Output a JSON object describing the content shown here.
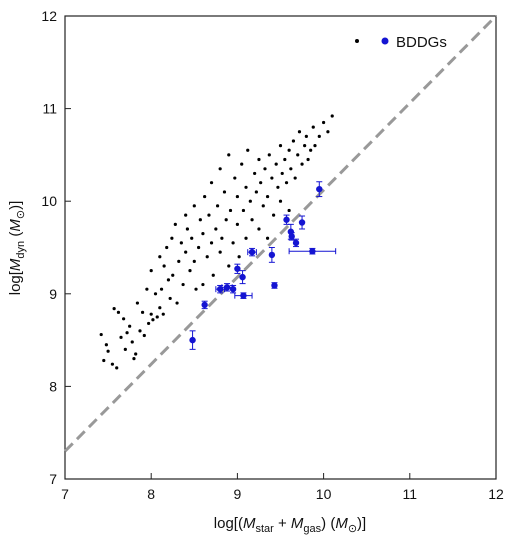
{
  "chart_data": {
    "type": "scatter",
    "title": "",
    "xlabel_parts": [
      "log[(",
      "M",
      "star",
      " + ",
      "M",
      "gas",
      ") (",
      "M",
      "⊙",
      ")]"
    ],
    "ylabel_parts": [
      "log[",
      "M",
      "dyn",
      " (",
      "M",
      "⊙",
      ")]"
    ],
    "xlim": [
      7,
      12
    ],
    "ylim": [
      7,
      12
    ],
    "xticks": [
      7,
      8,
      9,
      10,
      11,
      12
    ],
    "yticks": [
      7,
      8,
      9,
      10,
      11,
      12
    ],
    "xtick_labels": [
      "7",
      "8",
      "9",
      "10",
      "11",
      "12"
    ],
    "ytick_labels": [
      "7",
      "8",
      "9",
      "10",
      "11",
      "12"
    ],
    "grid": false,
    "legend_position": "top-right",
    "legend_label": "BDDGs",
    "reference_line": {
      "style": "dashed",
      "color": "#999999",
      "x": [
        7,
        12
      ],
      "y": [
        7.3,
        12.05
      ]
    },
    "colors": {
      "comparison": "#000000",
      "bddg": "#1414d2",
      "reference": "#999999"
    },
    "series": [
      {
        "marker": "small-dot",
        "points": [
          [
            7.42,
            8.56
          ],
          [
            7.45,
            8.28
          ],
          [
            7.48,
            8.45
          ],
          [
            7.5,
            8.38
          ],
          [
            7.55,
            8.24
          ],
          [
            7.57,
            8.84
          ],
          [
            7.6,
            8.2
          ],
          [
            7.62,
            8.8
          ],
          [
            7.65,
            8.53
          ],
          [
            7.68,
            8.73
          ],
          [
            7.7,
            8.4
          ],
          [
            7.72,
            8.58
          ],
          [
            7.75,
            8.65
          ],
          [
            7.78,
            8.48
          ],
          [
            7.8,
            8.3
          ],
          [
            7.82,
            8.35
          ],
          [
            7.84,
            8.9
          ],
          [
            7.87,
            8.6
          ],
          [
            7.9,
            8.8
          ],
          [
            7.92,
            8.55
          ],
          [
            7.95,
            9.05
          ],
          [
            7.97,
            8.68
          ],
          [
            8.0,
            9.25
          ],
          [
            8.0,
            8.78
          ],
          [
            8.02,
            8.72
          ],
          [
            8.05,
            9.0
          ],
          [
            8.07,
            8.75
          ],
          [
            8.1,
            8.85
          ],
          [
            8.1,
            9.4
          ],
          [
            8.12,
            9.05
          ],
          [
            8.14,
            8.78
          ],
          [
            8.15,
            9.3
          ],
          [
            8.18,
            9.5
          ],
          [
            8.2,
            9.15
          ],
          [
            8.22,
            8.95
          ],
          [
            8.24,
            9.6
          ],
          [
            8.25,
            9.2
          ],
          [
            8.28,
            9.75
          ],
          [
            8.3,
            8.9
          ],
          [
            8.32,
            9.35
          ],
          [
            8.35,
            9.55
          ],
          [
            8.37,
            9.1
          ],
          [
            8.4,
            9.85
          ],
          [
            8.4,
            9.45
          ],
          [
            8.42,
            9.7
          ],
          [
            8.45,
            9.25
          ],
          [
            8.47,
            9.6
          ],
          [
            8.5,
            9.95
          ],
          [
            8.5,
            9.35
          ],
          [
            8.52,
            9.05
          ],
          [
            8.55,
            9.5
          ],
          [
            8.57,
            9.8
          ],
          [
            8.6,
            9.65
          ],
          [
            8.6,
            9.1
          ],
          [
            8.62,
            10.05
          ],
          [
            8.65,
            9.4
          ],
          [
            8.67,
            9.85
          ],
          [
            8.7,
            9.55
          ],
          [
            8.7,
            10.2
          ],
          [
            8.72,
            9.2
          ],
          [
            8.75,
            9.7
          ],
          [
            8.77,
            9.95
          ],
          [
            8.8,
            9.45
          ],
          [
            8.8,
            10.35
          ],
          [
            8.82,
            9.6
          ],
          [
            8.85,
            10.1
          ],
          [
            8.87,
            9.8
          ],
          [
            8.9,
            9.3
          ],
          [
            8.9,
            10.5
          ],
          [
            8.92,
            9.9
          ],
          [
            8.95,
            9.55
          ],
          [
            8.97,
            10.25
          ],
          [
            9.0,
            9.75
          ],
          [
            9.0,
            10.05
          ],
          [
            9.02,
            9.4
          ],
          [
            9.05,
            10.4
          ],
          [
            9.07,
            9.9
          ],
          [
            9.1,
            10.15
          ],
          [
            9.1,
            9.6
          ],
          [
            9.12,
            10.55
          ],
          [
            9.15,
            10.0
          ],
          [
            9.17,
            9.8
          ],
          [
            9.2,
            10.3
          ],
          [
            9.22,
            10.1
          ],
          [
            9.25,
            9.7
          ],
          [
            9.25,
            10.45
          ],
          [
            9.27,
            10.2
          ],
          [
            9.3,
            9.95
          ],
          [
            9.32,
            10.35
          ],
          [
            9.35,
            10.05
          ],
          [
            9.35,
            9.6
          ],
          [
            9.37,
            10.5
          ],
          [
            9.4,
            10.25
          ],
          [
            9.42,
            9.85
          ],
          [
            9.45,
            10.4
          ],
          [
            9.47,
            10.15
          ],
          [
            9.5,
            10.6
          ],
          [
            9.5,
            10.0
          ],
          [
            9.52,
            10.3
          ],
          [
            9.55,
            10.45
          ],
          [
            9.57,
            10.2
          ],
          [
            9.6,
            10.55
          ],
          [
            9.6,
            9.9
          ],
          [
            9.62,
            10.35
          ],
          [
            9.65,
            10.65
          ],
          [
            9.67,
            10.25
          ],
          [
            9.7,
            10.5
          ],
          [
            9.72,
            10.75
          ],
          [
            9.75,
            10.4
          ],
          [
            9.78,
            10.6
          ],
          [
            9.8,
            10.7
          ],
          [
            9.82,
            10.45
          ],
          [
            9.85,
            10.55
          ],
          [
            9.88,
            10.8
          ],
          [
            9.9,
            10.6
          ],
          [
            9.95,
            10.7
          ],
          [
            10.0,
            10.85
          ],
          [
            10.05,
            10.75
          ],
          [
            10.1,
            10.92
          ]
        ]
      },
      {
        "name": "BDDGs",
        "marker": "filled-circle",
        "points": [
          {
            "x": 8.48,
            "y": 8.5,
            "yerr": 0.1
          },
          {
            "x": 8.62,
            "y": 8.88,
            "yerr": 0.04
          },
          {
            "x": 8.8,
            "y": 9.05,
            "yerr": 0.04,
            "xerr": 0.05
          },
          {
            "x": 8.88,
            "y": 9.07,
            "yerr": 0.04,
            "xerr": 0.06
          },
          {
            "x": 8.95,
            "y": 9.05,
            "yerr": 0.04
          },
          {
            "x": 9.0,
            "y": 9.27,
            "yerr": 0.05
          },
          {
            "x": 9.06,
            "y": 9.18,
            "yerr": 0.07
          },
          {
            "x": 9.07,
            "y": 8.98,
            "yerr": 0.03,
            "xerr": 0.1
          },
          {
            "x": 9.17,
            "y": 9.45,
            "yerr": 0.04,
            "xerr": 0.05
          },
          {
            "x": 9.4,
            "y": 9.42,
            "yerr": 0.08
          },
          {
            "x": 9.43,
            "y": 9.09,
            "yerr": 0.03
          },
          {
            "x": 9.57,
            "y": 9.8,
            "yerr": 0.05
          },
          {
            "x": 9.62,
            "y": 9.67,
            "yerr": 0.08
          },
          {
            "x": 9.63,
            "y": 9.62,
            "yerr": 0.04
          },
          {
            "x": 9.68,
            "y": 9.55,
            "yerr": 0.04
          },
          {
            "x": 9.75,
            "y": 9.77,
            "yerr": 0.07
          },
          {
            "x": 9.87,
            "y": 9.46,
            "yerr": 0.03,
            "xerr": 0.27
          },
          {
            "x": 9.95,
            "y": 10.13,
            "yerr": 0.08
          }
        ]
      }
    ]
  }
}
